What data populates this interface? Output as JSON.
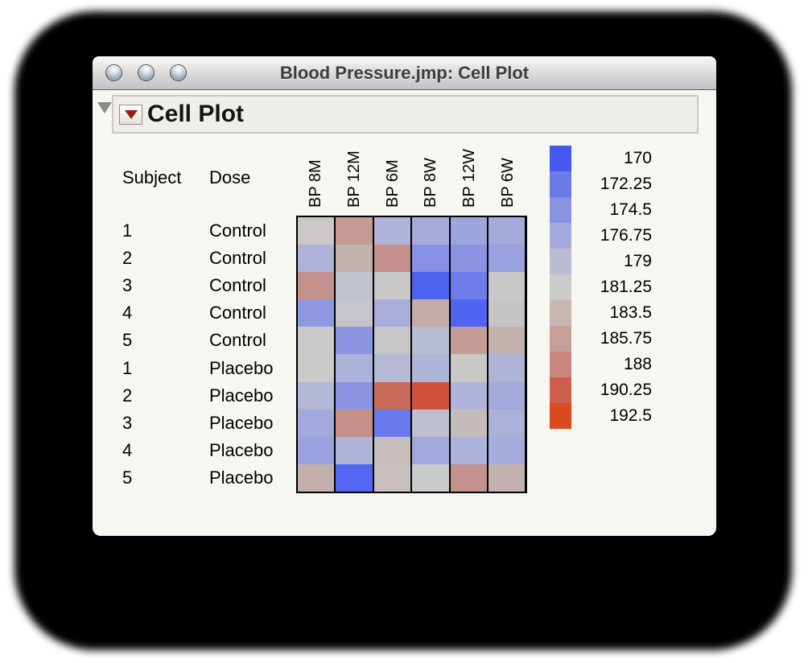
{
  "window": {
    "title": "Blood Pressure.jmp: Cell Plot"
  },
  "report": {
    "title": "Cell Plot"
  },
  "table_headers": {
    "subject": "Subject",
    "dose": "Dose"
  },
  "chart_data": {
    "type": "heatmap",
    "title": "Cell Plot",
    "columns": [
      "BP 8M",
      "BP 12M",
      "BP 6M",
      "BP 8W",
      "BP 12W",
      "BP 6W"
    ],
    "rows": [
      {
        "subject": "1",
        "dose": "Control"
      },
      {
        "subject": "2",
        "dose": "Control"
      },
      {
        "subject": "3",
        "dose": "Control"
      },
      {
        "subject": "4",
        "dose": "Control"
      },
      {
        "subject": "5",
        "dose": "Control"
      },
      {
        "subject": "1",
        "dose": "Placebo"
      },
      {
        "subject": "2",
        "dose": "Placebo"
      },
      {
        "subject": "3",
        "dose": "Placebo"
      },
      {
        "subject": "4",
        "dose": "Placebo"
      },
      {
        "subject": "5",
        "dose": "Placebo"
      }
    ],
    "cell_colors": [
      [
        "#cbc8c7",
        "#c69b95",
        "#afb3d7",
        "#a6abdc",
        "#9da5dd",
        "#a4aadb"
      ],
      [
        "#aeb3d9",
        "#c4b2ae",
        "#c48f8a",
        "#8790e5",
        "#8a93e2",
        "#99a1de"
      ],
      [
        "#c4928d",
        "#c2c4cd",
        "#c8c8c8",
        "#4e62f0",
        "#6f7dea",
        "#c8c8c9"
      ],
      [
        "#8e98e0",
        "#c5c6c9",
        "#a8adda",
        "#c4aba7",
        "#5064f2",
        "#c7c5c3"
      ],
      [
        "#cacaca",
        "#8b95e1",
        "#c6c6c9",
        "#b9bdd3",
        "#c49b96",
        "#c4b2ae"
      ],
      [
        "#cacac9",
        "#acb2d9",
        "#b6bad5",
        "#afb5d8",
        "#c8c8c5",
        "#afb5d7"
      ],
      [
        "#b3b7d6",
        "#8a94e2",
        "#c96b59",
        "#d0523c",
        "#afb4d8",
        "#a3aadb"
      ],
      [
        "#a2a9dc",
        "#c6908a",
        "#6b7aec",
        "#bcc0d1",
        "#c4bcb9",
        "#abb1d9"
      ],
      [
        "#99a2df",
        "#afb5d8",
        "#c6bebb",
        "#a0a8dd",
        "#acb2d9",
        "#a6acdb"
      ],
      [
        "#c3afac",
        "#5368f2",
        "#c9c0bd",
        "#c9cacb",
        "#c3928c",
        "#c3b3b0"
      ]
    ],
    "legend": {
      "tick_labels": [
        "170",
        "172.25",
        "174.5",
        "176.75",
        "179",
        "181.25",
        "183.5",
        "185.75",
        "188",
        "190.25",
        "192.5"
      ],
      "colors": [
        "#4558f0",
        "#6b7ae8",
        "#8a93df",
        "#a3a9da",
        "#b9bcd2",
        "#cacbca",
        "#c7b8b4",
        "#c79f99",
        "#c8867d",
        "#cd5f4c",
        "#d94a1c"
      ],
      "position": "right",
      "range": [
        170,
        192.5
      ]
    }
  }
}
